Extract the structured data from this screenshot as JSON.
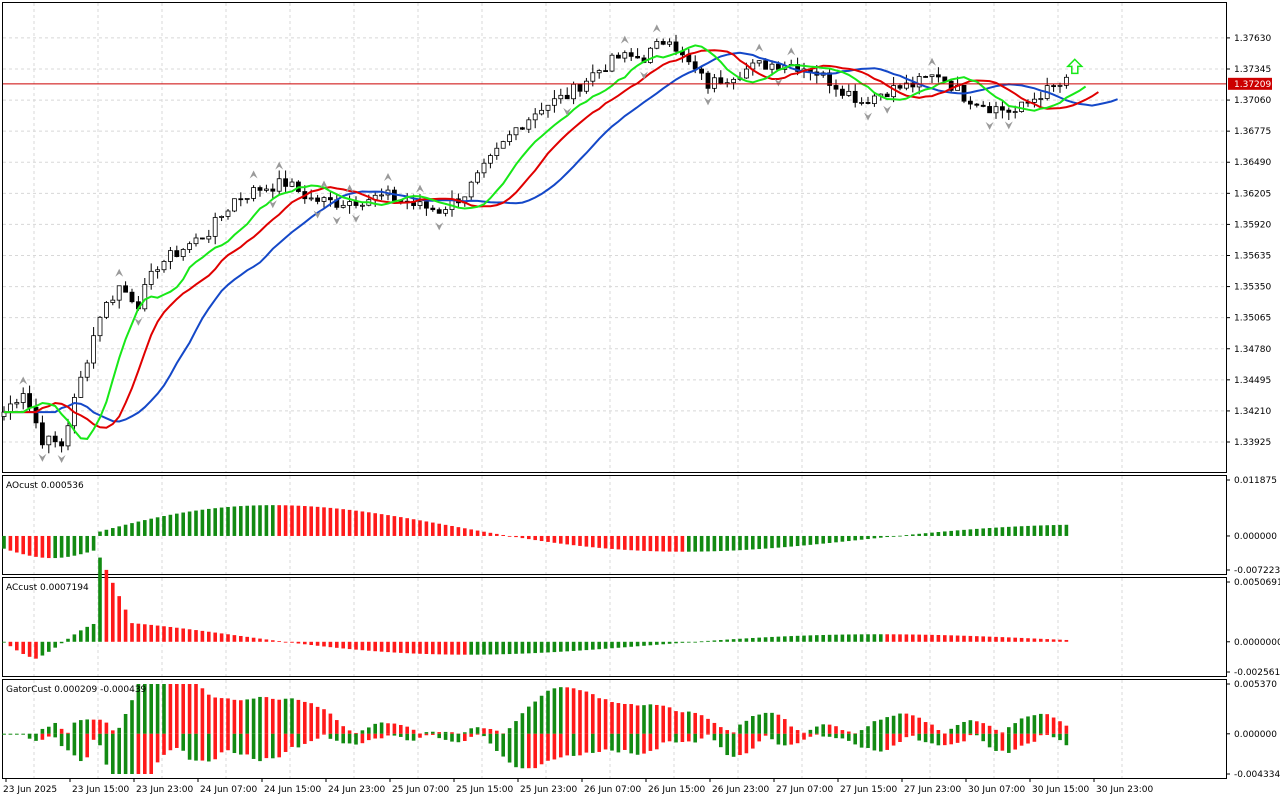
{
  "colors": {
    "bull_hist": "#128a12",
    "bear_hist": "#ff1a1a",
    "candle_body_up": "#ffffff",
    "candle_body_down": "#000000",
    "jaw": "#1448c8",
    "teeth": "#e00000",
    "lips": "#18e818",
    "price_line": "#cc0000",
    "price_tag": "#cc0000",
    "fractal": "#9a9a9a",
    "signal_arrow": "#18e818",
    "grid": "#d8d8d8"
  },
  "chart_data": [
    {
      "type": "candlestick",
      "name": "main",
      "price_label": "1.37209",
      "current_price": 1.37209,
      "y_ticks": [
        "1.37630",
        "1.37345",
        "1.37060",
        "1.36775",
        "1.36490",
        "1.36205",
        "1.35920",
        "1.35635",
        "1.35350",
        "1.35065",
        "1.34780",
        "1.34495",
        "1.34210",
        "1.33925"
      ],
      "ylim": [
        1.3365,
        1.3795
      ],
      "x_labels": [
        "23 Jun 2025",
        "23 Jun 15:00",
        "23 Jun 23:00",
        "24 Jun 07:00",
        "24 Jun 15:00",
        "24 Jun 23:00",
        "25 Jun 07:00",
        "25 Jun 15:00",
        "25 Jun 23:00",
        "26 Jun 07:00",
        "26 Jun 15:00",
        "26 Jun 23:00",
        "27 Jun 07:00",
        "27 Jun 15:00",
        "27 Jun 23:00",
        "30 Jun 07:00",
        "30 Jun 15:00",
        "30 Jun 23:00"
      ],
      "indicators": [
        "Alligator jaw",
        "Alligator teeth",
        "Alligator lips",
        "Fractals"
      ],
      "signal": "buy arrow at last bar"
    },
    {
      "type": "bar",
      "name": "AOcust",
      "label": "AOcust 0.000536",
      "y_ticks": [
        "0.011875",
        "0.000000",
        "-0.007223"
      ],
      "ylim": [
        -0.007223,
        0.011875
      ]
    },
    {
      "type": "bar",
      "name": "ACcust",
      "label": "ACcust 0.0007194",
      "y_ticks": [
        "0.0050691",
        "0.0000000",
        "-0.0025618"
      ],
      "ylim": [
        -0.0025618,
        0.0050691
      ]
    },
    {
      "type": "bar",
      "name": "GatorCust",
      "label": "GatorCust 0.000209 -0.000439",
      "y_ticks": [
        "0.005370",
        "0.000000",
        "-0.004334"
      ],
      "ylim": [
        -0.004334,
        0.00537
      ]
    }
  ]
}
